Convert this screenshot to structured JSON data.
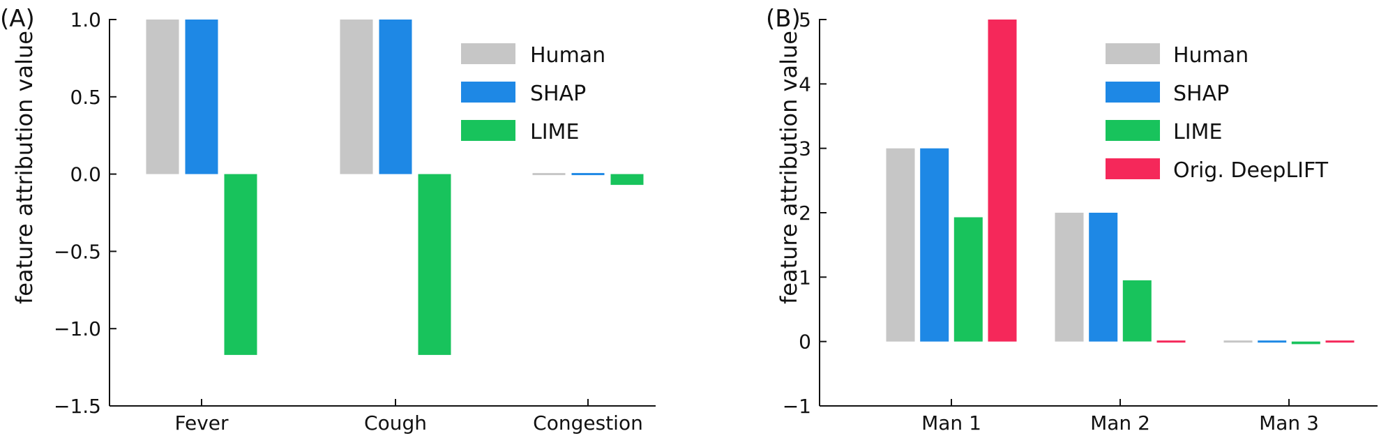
{
  "chart_data": [
    {
      "type": "bar",
      "panel_label": "(A)",
      "ylabel": "feature attribution value",
      "categories": [
        "Fever",
        "Cough",
        "Congestion"
      ],
      "ylim": [
        -1.5,
        1.0
      ],
      "yticks": [
        1.0,
        0.5,
        0.0,
        -0.5,
        -1.0,
        -1.5
      ],
      "ytick_labels": [
        "1.0",
        "0.5",
        "0.0",
        "−0.5",
        "−1.0",
        "−1.5"
      ],
      "grid": false,
      "legend_position": "top-right",
      "series": [
        {
          "name": "Human",
          "color": "#c6c6c6",
          "values": [
            1.0,
            1.0,
            0.0
          ]
        },
        {
          "name": "SHAP",
          "color": "#1e88e5",
          "values": [
            1.0,
            1.0,
            0.0
          ]
        },
        {
          "name": "LIME",
          "color": "#18c35c",
          "values": [
            -1.17,
            -1.17,
            -0.07
          ]
        }
      ]
    },
    {
      "type": "bar",
      "panel_label": "(B)",
      "ylabel": "feature attribution value",
      "categories": [
        "Man 1",
        "Man 2",
        "Man 3"
      ],
      "ylim": [
        -1,
        5
      ],
      "yticks": [
        5,
        4,
        3,
        2,
        1,
        0,
        -1
      ],
      "ytick_labels": [
        "5",
        "4",
        "3",
        "2",
        "1",
        "0",
        "−1"
      ],
      "grid": false,
      "legend_position": "top-right",
      "series": [
        {
          "name": "Human",
          "color": "#c6c6c6",
          "values": [
            3.0,
            2.0,
            0.0
          ]
        },
        {
          "name": "SHAP",
          "color": "#1e88e5",
          "values": [
            3.0,
            2.0,
            0.0
          ]
        },
        {
          "name": "LIME",
          "color": "#18c35c",
          "values": [
            1.93,
            0.95,
            -0.04
          ]
        },
        {
          "name": "Orig. DeepLIFT",
          "color": "#f5285a",
          "values": [
            5.0,
            0.0,
            0.0
          ]
        }
      ]
    }
  ]
}
